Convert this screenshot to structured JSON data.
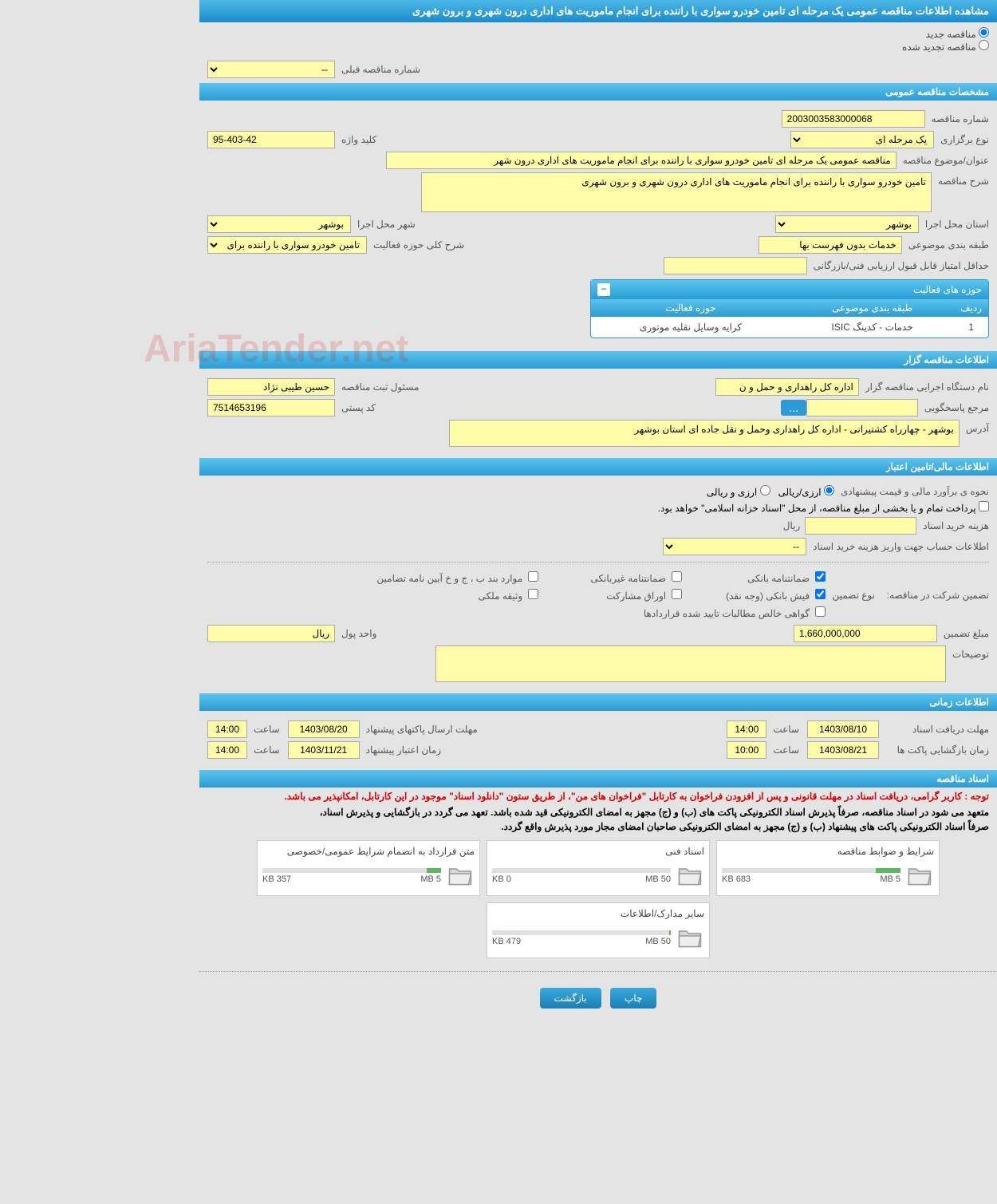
{
  "page_title": "مشاهده اطلاعات مناقصه عمومی یک مرحله ای تامین خودرو سواری با راننده برای انجام ماموریت های اداری درون شهری و برون شهری",
  "radios": {
    "new_tender": "مناقصه جدید",
    "renewed_tender": "مناقصه تجدید شده"
  },
  "prev_number": {
    "label": "شماره مناقصه قبلی",
    "value": "--"
  },
  "sections": {
    "general": "مشخصات مناقصه عمومی",
    "organizer": "اطلاعات مناقصه گزار",
    "financial": "اطلاعات مالی/تامین اعتبار",
    "timing": "اطلاعات زمانی",
    "documents": "اسناد مناقصه"
  },
  "general": {
    "tender_number_label": "شماره مناقصه",
    "tender_number": "2003003583000068",
    "holding_type_label": "نوع برگزاری",
    "holding_type": "یک مرحله ای",
    "keyword_label": "کلید واژه",
    "keyword": "95-403-42",
    "subject_label": "عنوان/موضوع مناقصه",
    "subject": "مناقصه عمومی یک مرحله ای تامین خودرو سواری با راننده برای انجام ماموریت های اداری درون شهر",
    "description_label": "شرح مناقصه",
    "description": "تامین خودرو سواری با راننده برای انجام ماموریت های اداری درون شهری و برون شهری",
    "province_label": "استان محل اجرا",
    "province": "بوشهر",
    "city_label": "شهر محل اجرا",
    "city": "بوشهر",
    "category_label": "طبقه بندی موضوعی",
    "category": "خدمات بدون فهرست بها",
    "activity_desc_label": "شرح کلی حوزه فعالیت",
    "activity_desc": "تامین خودرو سواری با راننده برای انجام ماموریت",
    "min_score_label": "حداقل امتیاز قابل قبول ارزیابی فنی/بازرگانی",
    "min_score": ""
  },
  "activity_table": {
    "title": "حوزه های فعالیت",
    "col_row": "ردیف",
    "col_category": "طبقه بندی موضوعی",
    "col_activity": "حوزه فعالیت",
    "rows": [
      {
        "n": "1",
        "category": "خدمات - کدینگ ISIC",
        "activity": "کرایه وسایل نقلیه موتوری"
      }
    ]
  },
  "organizer": {
    "org_label": "نام دستگاه اجرایی مناقصه گزار",
    "org": "اداره کل راهداری و حمل و ن",
    "registrar_label": "مسئول ثبت مناقصه",
    "registrar": "حسین طیبی نژاد",
    "responder_label": "مرجع پاسخگویی",
    "responder": "",
    "more": "...",
    "postal_label": "کد پستی",
    "postal": "7514653196",
    "address_label": "آدرس",
    "address": "بوشهر - چهارراه کشتیرانی - اداره کل راهداری وحمل و نقل جاده ای استان بوشهر"
  },
  "financial": {
    "estimate_label": "نحوه ی برآورد مالی و قیمت پیشنهادی",
    "currency_rial": "ارزی/ریالی",
    "currency_foreign": "ارزی و ریالی",
    "treasury_note": "پرداخت تمام و یا بخشی از مبلغ مناقصه، از محل \"اسناد خزانه اسلامی\" خواهد بود.",
    "doc_cost_label": "هزینه خرید اسناد",
    "doc_cost": "",
    "rial_unit": "ریال",
    "account_label": "اطلاعات حساب جهت واریز هزینه خرید اسناد",
    "account": "--",
    "guarantee_section_label": "تضمین شرکت در مناقصه:",
    "guarantee_type_label": "نوع تضمین",
    "cb_bank_guarantee": "ضمانتنامه بانکی",
    "cb_nonbank_guarantee": "ضمانتنامه غیربانکی",
    "cb_regulation": "موارد بند ب ، ج و خ آیین نامه تضامین",
    "cb_bank_receipt": "فیش بانکی (وجه نقد)",
    "cb_bonds": "اوراق مشارکت",
    "cb_property": "وثیقه ملکی",
    "cb_receivables": "گواهی خالص مطالبات تایید شده قراردادها",
    "guarantee_amount_label": "مبلغ تضمین",
    "guarantee_amount": "1,660,000,000",
    "currency_unit_label": "واحد پول",
    "currency_unit": "ریال",
    "notes_label": "توضیحات",
    "notes": ""
  },
  "timing": {
    "receive_deadline_label": "مهلت دریافت اسناد",
    "receive_deadline_date": "1403/08/10",
    "receive_deadline_time": "14:00",
    "send_deadline_label": "مهلت ارسال پاکتهای پیشنهاد",
    "send_deadline_date": "1403/08/20",
    "send_deadline_time": "14:00",
    "opening_label": "زمان بازگشایی پاکت ها",
    "opening_date": "1403/08/21",
    "opening_time": "10:00",
    "validity_label": "زمان اعتبار پیشنهاد",
    "validity_date": "1403/11/21",
    "validity_time": "14:00",
    "time_label": "ساعت"
  },
  "notices": {
    "red": "توجه : کاربر گرامی، دریافت اسناد در مهلت قانونی و پس از افزودن فراخوان به کارتابل \"فراخوان های من\"، از طریق ستون \"دانلود اسناد\" موجود در این کارتابل، امکانپذیر می باشد.",
    "black1": "متعهد می شود در اسناد مناقصه، صرفاً پذیرش اسناد الکترونیکی پاکت های (ب) و (ج) مجهز به امضای الکترونیکی قید شده باشد. تعهد می گردد در بازگشایی و پذیرش اسناد،",
    "black2": "صرفاً اسناد الکترونیکی پاکت های پیشنهاد (ب) و (ج) مجهز به امضای الکترونیکی صاحبان امضای مجاز مورد پذیرش واقع گردد."
  },
  "documents": [
    {
      "title": "شرایط و ضوابط مناقصه",
      "used": "683 KB",
      "total": "5 MB",
      "pct": 14
    },
    {
      "title": "اسناد فنی",
      "used": "0 KB",
      "total": "50 MB",
      "pct": 0
    },
    {
      "title": "متن قرارداد به انضمام شرایط عمومی/خصوصی",
      "used": "357 KB",
      "total": "5 MB",
      "pct": 8
    },
    {
      "title": "سایر مدارک/اطلاعات",
      "used": "479 KB",
      "total": "50 MB",
      "pct": 1
    }
  ],
  "buttons": {
    "print": "چاپ",
    "back": "بازگشت"
  },
  "watermark": "AriaTender.net",
  "colors": {
    "header_gradient_top": "#5cc5ed",
    "header_gradient_bottom": "#2a9bd6",
    "yellow_field": "#fffca8",
    "page_bg": "#e4e4e4",
    "progress_fill": "#5cb85c"
  }
}
